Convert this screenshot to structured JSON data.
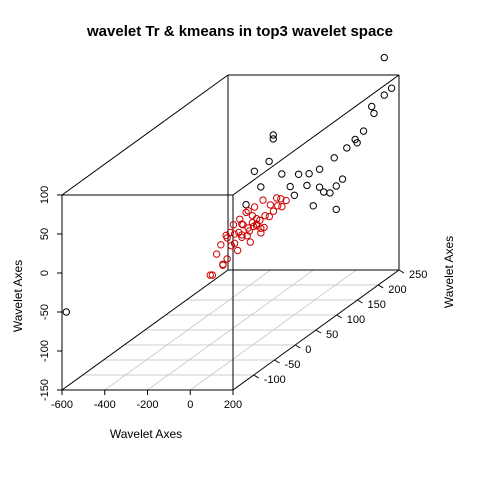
{
  "chart_data": {
    "type": "scatter",
    "projection": "3d",
    "title": "wavelet Tr & kmeans in top3 wavelet space",
    "xlabel": "Wavelet Axes",
    "ylabel": "Wavelet Axes",
    "zlabel": "Wavelet Axes",
    "xlim": [
      -600,
      200
    ],
    "ylim": [
      -150,
      250
    ],
    "zlim": [
      -150,
      100
    ],
    "x_ticks": [
      "-600",
      "-400",
      "-200",
      "0",
      "200"
    ],
    "y_ticks": [
      "-100",
      "-50",
      "0",
      "50",
      "100",
      "150",
      "200",
      "250"
    ],
    "z_ticks": [
      "-150",
      "-100",
      "-50",
      "0",
      "50",
      "100"
    ],
    "grid": "bottom plane",
    "colors": {
      "cluster_1": "#000000",
      "cluster_2": "#cc0000"
    },
    "series": [
      {
        "color": "#000000",
        "points": [
          [
            -580,
            -150,
            -50
          ],
          [
            0,
            50,
            100
          ],
          [
            0,
            50,
            95
          ],
          [
            0,
            40,
            70
          ],
          [
            -30,
            20,
            65
          ],
          [
            0,
            20,
            45
          ],
          [
            -40,
            5,
            28
          ],
          [
            40,
            50,
            50
          ],
          [
            60,
            60,
            30
          ],
          [
            70,
            75,
            40
          ],
          [
            90,
            90,
            35
          ],
          [
            110,
            105,
            35
          ],
          [
            130,
            130,
            40
          ],
          [
            150,
            150,
            45
          ],
          [
            160,
            165,
            50
          ],
          [
            170,
            180,
            55
          ],
          [
            180,
            200,
            70
          ],
          [
            170,
            230,
            130
          ],
          [
            175,
            245,
            85
          ],
          [
            160,
            235,
            80
          ],
          [
            150,
            210,
            75
          ],
          [
            140,
            180,
            40
          ],
          [
            120,
            140,
            0
          ],
          [
            130,
            150,
            5
          ],
          [
            100,
            120,
            0
          ],
          [
            110,
            130,
            -5
          ],
          [
            90,
            100,
            -10
          ],
          [
            120,
            140,
            -30
          ],
          [
            60,
            70,
            15
          ],
          [
            80,
            90,
            20
          ],
          [
            100,
            110,
            10
          ]
        ]
      },
      {
        "color": "#cc0000",
        "points": [
          [
            -20,
            0,
            0
          ],
          [
            -10,
            5,
            5
          ],
          [
            0,
            10,
            8
          ],
          [
            10,
            5,
            3
          ],
          [
            -30,
            -10,
            -5
          ],
          [
            -40,
            -5,
            -10
          ],
          [
            -50,
            0,
            5
          ],
          [
            -20,
            10,
            12
          ],
          [
            20,
            20,
            8
          ],
          [
            30,
            25,
            5
          ],
          [
            40,
            30,
            10
          ],
          [
            50,
            35,
            15
          ],
          [
            60,
            40,
            12
          ],
          [
            70,
            45,
            18
          ],
          [
            -60,
            -20,
            -15
          ],
          [
            -70,
            -25,
            -30
          ],
          [
            -80,
            -20,
            -5
          ],
          [
            -90,
            -30,
            -10
          ],
          [
            -100,
            -35,
            -20
          ],
          [
            -60,
            -15,
            10
          ],
          [
            -40,
            -10,
            15
          ],
          [
            -30,
            0,
            20
          ],
          [
            -10,
            15,
            -3
          ],
          [
            0,
            20,
            -8
          ],
          [
            10,
            15,
            -12
          ],
          [
            -20,
            5,
            -20
          ],
          [
            -50,
            -10,
            -25
          ],
          [
            -80,
            -30,
            -35
          ],
          [
            -110,
            -40,
            -45
          ],
          [
            -120,
            -40,
            -45
          ],
          [
            -90,
            -25,
            -38
          ],
          [
            -20,
            0,
            22
          ],
          [
            0,
            5,
            25
          ],
          [
            20,
            15,
            30
          ],
          [
            -5,
            -5,
            -2
          ],
          [
            5,
            0,
            2
          ],
          [
            -15,
            -5,
            -8
          ],
          [
            15,
            10,
            6
          ],
          [
            25,
            15,
            -5
          ],
          [
            -35,
            -15,
            0
          ],
          [
            -45,
            -20,
            -12
          ],
          [
            -75,
            -25,
            0
          ],
          [
            35,
            25,
            20
          ],
          [
            45,
            35,
            25
          ],
          [
            55,
            40,
            22
          ],
          [
            -25,
            -10,
            8
          ],
          [
            -55,
            -15,
            -2
          ],
          [
            -65,
            -20,
            2
          ]
        ]
      }
    ]
  }
}
